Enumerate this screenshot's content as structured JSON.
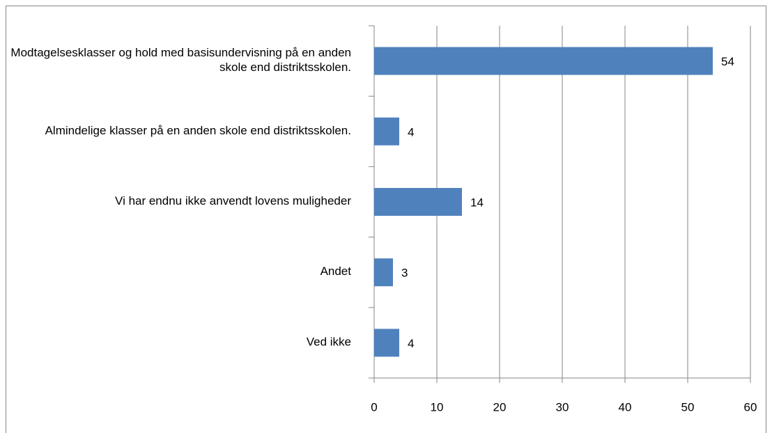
{
  "chart_data": {
    "type": "bar",
    "orientation": "horizontal",
    "categories": [
      "Modtagelsesklasser og hold med basisundervisning på en anden skole end distriktsskolen.",
      "Almindelige klasser på en anden skole end distriktsskolen.",
      "Vi har endnu ikke anvendt lovens muligheder",
      "Andet",
      "Ved ikke"
    ],
    "values": [
      54,
      4,
      14,
      3,
      4
    ],
    "color": "#4f81bd",
    "xlim": [
      0,
      60
    ],
    "xticks": [
      0,
      10,
      20,
      30,
      40,
      50,
      60
    ],
    "grid": true
  }
}
